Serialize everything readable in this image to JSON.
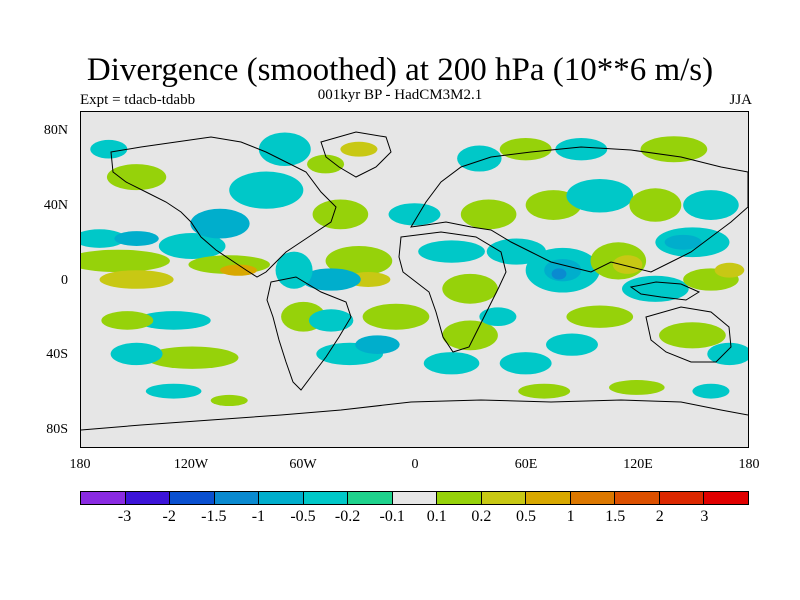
{
  "title": "Divergence (smoothed) at 200 hPa (10**6 m/s)",
  "subtitle": "001kyr BP - HadCM3M2.1",
  "experiment": "Expt = tdacb-tdabb",
  "season": "JJA",
  "map": {
    "lat_labels": [
      "80N",
      "40N",
      "0",
      "40S",
      "80S"
    ],
    "lon_labels": [
      "180",
      "120W",
      "60W",
      "0",
      "60E",
      "120E",
      "180"
    ],
    "background_color": "#e6e6e6",
    "contours": [
      {
        "lon": -160,
        "lat": 10,
        "rx": 28,
        "ry": 6,
        "level": "0.2"
      },
      {
        "lon": -150,
        "lat": 0,
        "rx": 20,
        "ry": 5,
        "level": "0.5"
      },
      {
        "lon": -170,
        "lat": 22,
        "rx": 14,
        "ry": 5,
        "level": "-0.2"
      },
      {
        "lon": -150,
        "lat": 22,
        "rx": 12,
        "ry": 4,
        "level": "-0.5"
      },
      {
        "lon": -120,
        "lat": 18,
        "rx": 18,
        "ry": 7,
        "level": "-0.2"
      },
      {
        "lon": -100,
        "lat": 8,
        "rx": 22,
        "ry": 5,
        "level": "0.2"
      },
      {
        "lon": -95,
        "lat": 5,
        "rx": 10,
        "ry": 3,
        "level": "1"
      },
      {
        "lon": -130,
        "lat": -22,
        "rx": 20,
        "ry": 5,
        "level": "-0.2"
      },
      {
        "lon": -155,
        "lat": -22,
        "rx": 14,
        "ry": 5,
        "level": "0.2"
      },
      {
        "lon": -120,
        "lat": -42,
        "rx": 25,
        "ry": 6,
        "level": "0.2"
      },
      {
        "lon": -150,
        "lat": -40,
        "rx": 14,
        "ry": 6,
        "level": "-0.2"
      },
      {
        "lon": -80,
        "lat": 48,
        "rx": 20,
        "ry": 10,
        "level": "-0.2"
      },
      {
        "lon": -105,
        "lat": 30,
        "rx": 16,
        "ry": 8,
        "level": "-0.5"
      },
      {
        "lon": -150,
        "lat": 55,
        "rx": 16,
        "ry": 7,
        "level": "0.2"
      },
      {
        "lon": -165,
        "lat": 70,
        "rx": 10,
        "ry": 5,
        "level": "-0.2"
      },
      {
        "lon": -70,
        "lat": 70,
        "rx": 14,
        "ry": 9,
        "level": "-0.2"
      },
      {
        "lon": -48,
        "lat": 62,
        "rx": 10,
        "ry": 5,
        "level": "0.2"
      },
      {
        "lon": -30,
        "lat": 70,
        "rx": 10,
        "ry": 4,
        "level": "0.5"
      },
      {
        "lon": -40,
        "lat": 35,
        "rx": 15,
        "ry": 8,
        "level": "0.2"
      },
      {
        "lon": -30,
        "lat": 10,
        "rx": 18,
        "ry": 8,
        "level": "0.2"
      },
      {
        "lon": -25,
        "lat": 0,
        "rx": 12,
        "ry": 4,
        "level": "0.5"
      },
      {
        "lon": -45,
        "lat": 0,
        "rx": 16,
        "ry": 6,
        "level": "-0.5"
      },
      {
        "lon": -65,
        "lat": 5,
        "rx": 10,
        "ry": 10,
        "level": "-0.2"
      },
      {
        "lon": -60,
        "lat": -20,
        "rx": 12,
        "ry": 8,
        "level": "0.2"
      },
      {
        "lon": -45,
        "lat": -22,
        "rx": 12,
        "ry": 6,
        "level": "-0.2"
      },
      {
        "lon": -35,
        "lat": -40,
        "rx": 18,
        "ry": 6,
        "level": "-0.2"
      },
      {
        "lon": -10,
        "lat": -20,
        "rx": 18,
        "ry": 7,
        "level": "0.2"
      },
      {
        "lon": -20,
        "lat": -35,
        "rx": 12,
        "ry": 5,
        "level": "-0.5"
      },
      {
        "lon": 0,
        "lat": 35,
        "rx": 14,
        "ry": 6,
        "level": "-0.2"
      },
      {
        "lon": 20,
        "lat": 15,
        "rx": 18,
        "ry": 6,
        "level": "-0.2"
      },
      {
        "lon": 40,
        "lat": 35,
        "rx": 15,
        "ry": 8,
        "level": "0.2"
      },
      {
        "lon": 55,
        "lat": 15,
        "rx": 16,
        "ry": 7,
        "level": "-0.2"
      },
      {
        "lon": 30,
        "lat": -5,
        "rx": 15,
        "ry": 8,
        "level": "0.2"
      },
      {
        "lon": 30,
        "lat": -30,
        "rx": 15,
        "ry": 8,
        "level": "0.2"
      },
      {
        "lon": 45,
        "lat": -20,
        "rx": 10,
        "ry": 5,
        "level": "-0.2"
      },
      {
        "lon": 20,
        "lat": -45,
        "rx": 15,
        "ry": 6,
        "level": "-0.2"
      },
      {
        "lon": 60,
        "lat": -45,
        "rx": 14,
        "ry": 6,
        "level": "-0.2"
      },
      {
        "lon": 35,
        "lat": 65,
        "rx": 12,
        "ry": 7,
        "level": "-0.2"
      },
      {
        "lon": 60,
        "lat": 70,
        "rx": 14,
        "ry": 6,
        "level": "0.2"
      },
      {
        "lon": 90,
        "lat": 70,
        "rx": 14,
        "ry": 6,
        "level": "-0.2"
      },
      {
        "lon": 140,
        "lat": 70,
        "rx": 18,
        "ry": 7,
        "level": "0.2"
      },
      {
        "lon": 75,
        "lat": 40,
        "rx": 15,
        "ry": 8,
        "level": "0.2"
      },
      {
        "lon": 100,
        "lat": 45,
        "rx": 18,
        "ry": 9,
        "level": "-0.2"
      },
      {
        "lon": 130,
        "lat": 40,
        "rx": 14,
        "ry": 9,
        "level": "0.2"
      },
      {
        "lon": 160,
        "lat": 40,
        "rx": 15,
        "ry": 8,
        "level": "-0.2"
      },
      {
        "lon": 80,
        "lat": 5,
        "rx": 20,
        "ry": 12,
        "level": "-0.2"
      },
      {
        "lon": 80,
        "lat": 5,
        "rx": 10,
        "ry": 6,
        "level": "-0.5"
      },
      {
        "lon": 78,
        "lat": 3,
        "rx": 4,
        "ry": 3,
        "level": "-1"
      },
      {
        "lon": 110,
        "lat": 10,
        "rx": 15,
        "ry": 10,
        "level": "0.2"
      },
      {
        "lon": 115,
        "lat": 8,
        "rx": 8,
        "ry": 5,
        "level": "0.5"
      },
      {
        "lon": 150,
        "lat": 20,
        "rx": 20,
        "ry": 8,
        "level": "-0.2"
      },
      {
        "lon": 145,
        "lat": 20,
        "rx": 10,
        "ry": 4,
        "level": "-0.5"
      },
      {
        "lon": 130,
        "lat": -5,
        "rx": 18,
        "ry": 7,
        "level": "-0.2"
      },
      {
        "lon": 160,
        "lat": 0,
        "rx": 15,
        "ry": 6,
        "level": "0.2"
      },
      {
        "lon": 170,
        "lat": 5,
        "rx": 8,
        "ry": 4,
        "level": "0.5"
      },
      {
        "lon": 100,
        "lat": -20,
        "rx": 18,
        "ry": 6,
        "level": "0.2"
      },
      {
        "lon": 85,
        "lat": -35,
        "rx": 14,
        "ry": 6,
        "level": "-0.2"
      },
      {
        "lon": 150,
        "lat": -30,
        "rx": 18,
        "ry": 7,
        "level": "0.2"
      },
      {
        "lon": 170,
        "lat": -40,
        "rx": 12,
        "ry": 6,
        "level": "-0.2"
      },
      {
        "lon": -130,
        "lat": -60,
        "rx": 15,
        "ry": 4,
        "level": "-0.2"
      },
      {
        "lon": -100,
        "lat": -65,
        "rx": 10,
        "ry": 3,
        "level": "0.2"
      },
      {
        "lon": 70,
        "lat": -60,
        "rx": 14,
        "ry": 4,
        "level": "0.2"
      },
      {
        "lon": 120,
        "lat": -58,
        "rx": 15,
        "ry": 4,
        "level": "0.2"
      },
      {
        "lon": 160,
        "lat": -60,
        "rx": 10,
        "ry": 4,
        "level": "-0.2"
      }
    ]
  },
  "colorbar": {
    "colors": [
      "#8a2be2",
      "#3c14d8",
      "#0a50d0",
      "#0a8ad0",
      "#00aecc",
      "#00c8c8",
      "#1ed28c",
      "#e6e6e6",
      "#96d20a",
      "#c8c814",
      "#d8a800",
      "#dc7800",
      "#dc5000",
      "#dc2800",
      "#e10000"
    ],
    "labels": [
      "-3",
      "-2",
      "-1.5",
      "-1",
      "-0.5",
      "-0.2",
      "-0.1",
      "0.1",
      "0.2",
      "0.5",
      "1",
      "1.5",
      "2",
      "3"
    ],
    "level_colors": {
      "-1": "#0a8ad0",
      "-0.5": "#00aecc",
      "-0.2": "#00c8c8",
      "0.2": "#96d20a",
      "0.5": "#c8c814",
      "1": "#d8a800"
    }
  }
}
